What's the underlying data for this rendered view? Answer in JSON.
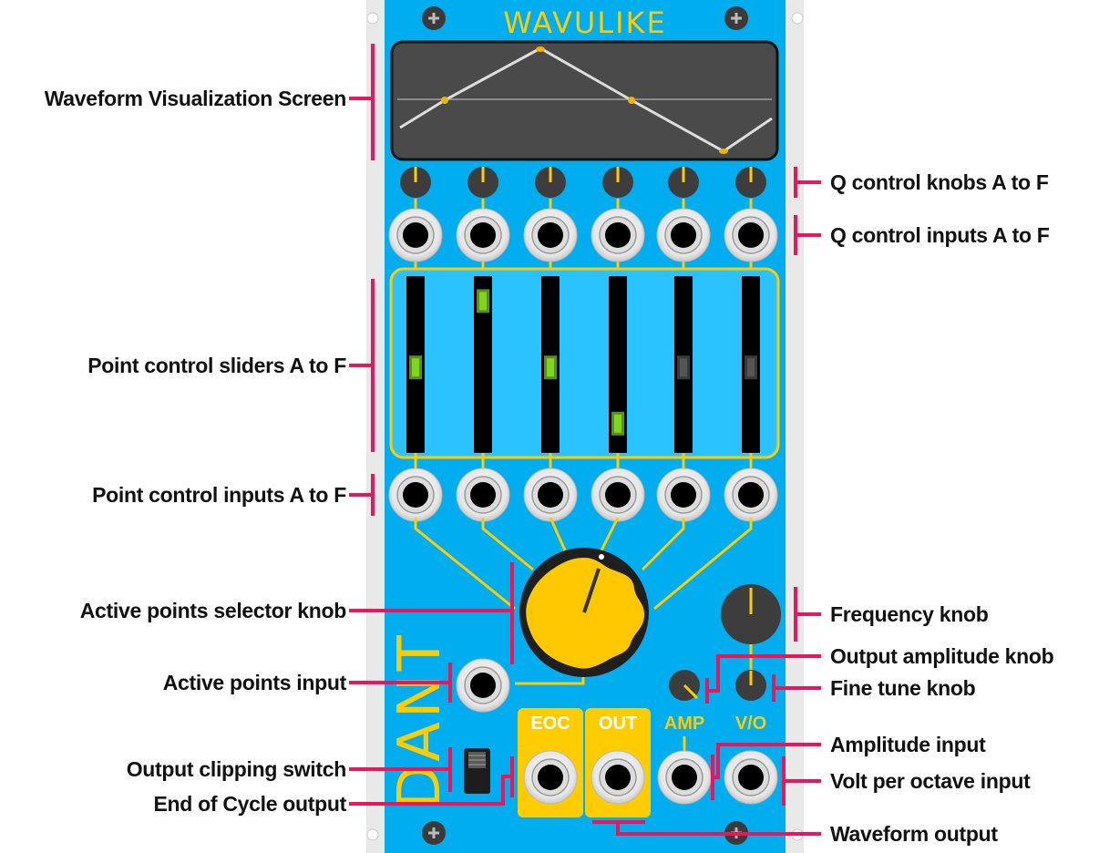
{
  "module": {
    "title": "WAVULIKE",
    "brand": "DANT",
    "panel_color": "#00adef",
    "accent_color": "#ffcc00",
    "slider_led_color": "#7fd61e",
    "label_line_color": "#e8175d",
    "screen": {
      "background": "#4a4a4a",
      "waveform_color": "#dddddd",
      "point_color": "#f0b400"
    },
    "q_knobs": [
      "A",
      "B",
      "C",
      "D",
      "E",
      "F"
    ],
    "sliders": [
      {
        "id": "A",
        "level": 0.48,
        "active": true
      },
      {
        "id": "B",
        "level": 0.93,
        "active": true
      },
      {
        "id": "C",
        "level": 0.48,
        "active": true
      },
      {
        "id": "D",
        "level": 0.1,
        "active": true
      },
      {
        "id": "E",
        "level": 0.48,
        "active": false
      },
      {
        "id": "F",
        "level": 0.48,
        "active": false
      }
    ],
    "port_labels": {
      "eoc": "EOC",
      "out": "OUT",
      "amp": "AMP",
      "voct": "V/O"
    }
  },
  "callouts": {
    "waveform_screen": "Waveform Visualization Screen",
    "point_sliders": "Point control sliders A to F",
    "point_inputs": "Point control inputs A to F",
    "active_points_knob": "Active points selector knob",
    "active_points_input": "Active points input",
    "clipping_switch": "Output clipping switch",
    "eoc_output": "End of Cycle output",
    "q_knobs": "Q control knobs A to F",
    "q_inputs": "Q control inputs A to F",
    "frequency_knob": "Frequency knob",
    "amplitude_knob": "Output amplitude knob",
    "fine_tune_knob": "Fine tune knob",
    "amplitude_input": "Amplitude input",
    "voct_input": "Volt per octave input",
    "waveform_output": "Waveform output"
  }
}
